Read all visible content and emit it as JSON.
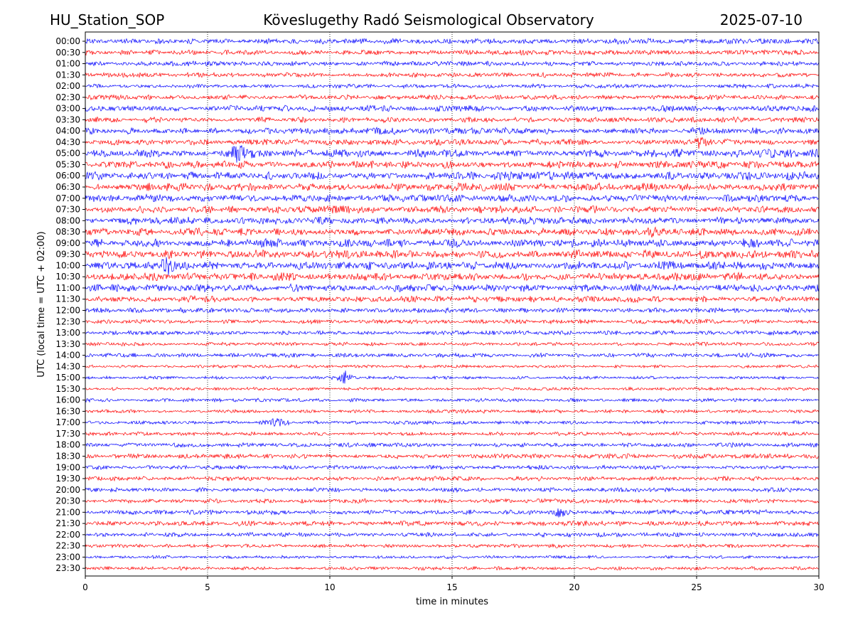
{
  "header": {
    "station": "HU_Station_SOP",
    "observatory": "Köveslugethy Radó Seismological Observatory",
    "date": "2025-07-10"
  },
  "chart_data": {
    "type": "line",
    "title": "Köveslugethy Radó Seismological Observatory",
    "xlabel": "time in minutes",
    "ylabel": "UTC (local time = UTC + 02:00)",
    "xlim": [
      0,
      30
    ],
    "x_ticks": [
      0,
      5,
      10,
      15,
      20,
      25,
      30
    ],
    "grid": "vertical dotted",
    "colors": [
      "#0000ff",
      "#ff0000"
    ],
    "rows": [
      "00:00",
      "00:30",
      "01:00",
      "01:30",
      "02:00",
      "02:30",
      "03:00",
      "03:30",
      "04:00",
      "04:30",
      "05:00",
      "05:30",
      "06:00",
      "06:30",
      "07:00",
      "07:30",
      "08:00",
      "08:30",
      "09:00",
      "09:30",
      "10:00",
      "10:30",
      "11:00",
      "11:30",
      "12:00",
      "12:30",
      "13:00",
      "13:30",
      "14:00",
      "14:30",
      "15:00",
      "15:30",
      "16:00",
      "16:30",
      "17:00",
      "17:30",
      "18:00",
      "18:30",
      "19:00",
      "19:30",
      "20:00",
      "20:30",
      "21:00",
      "21:30",
      "22:00",
      "22:30",
      "23:00",
      "23:30"
    ],
    "row_noise_level": [
      0.45,
      0.4,
      0.4,
      0.4,
      0.35,
      0.4,
      0.5,
      0.45,
      0.55,
      0.5,
      0.7,
      0.65,
      0.7,
      0.65,
      0.6,
      0.6,
      0.6,
      0.6,
      0.7,
      0.7,
      0.7,
      0.65,
      0.6,
      0.5,
      0.4,
      0.35,
      0.35,
      0.3,
      0.35,
      0.25,
      0.25,
      0.25,
      0.3,
      0.3,
      0.3,
      0.3,
      0.35,
      0.4,
      0.35,
      0.35,
      0.35,
      0.35,
      0.4,
      0.4,
      0.35,
      0.3,
      0.25,
      0.3
    ],
    "events": [
      {
        "row": "05:00",
        "x": 6.3,
        "amplitude": 1.9
      },
      {
        "row": "10:00",
        "x": 3.4,
        "amplitude": 1.6
      },
      {
        "row": "15:00",
        "x": 10.6,
        "amplitude": 1.5
      },
      {
        "row": "21:00",
        "x": 19.4,
        "amplitude": 1.1
      },
      {
        "row": "04:30",
        "x": 25.1,
        "amplitude": 1.1
      },
      {
        "row": "08:30",
        "x": 23.2,
        "amplitude": 1.0
      },
      {
        "row": "17:00",
        "x": 7.8,
        "amplitude": 0.9
      }
    ]
  }
}
